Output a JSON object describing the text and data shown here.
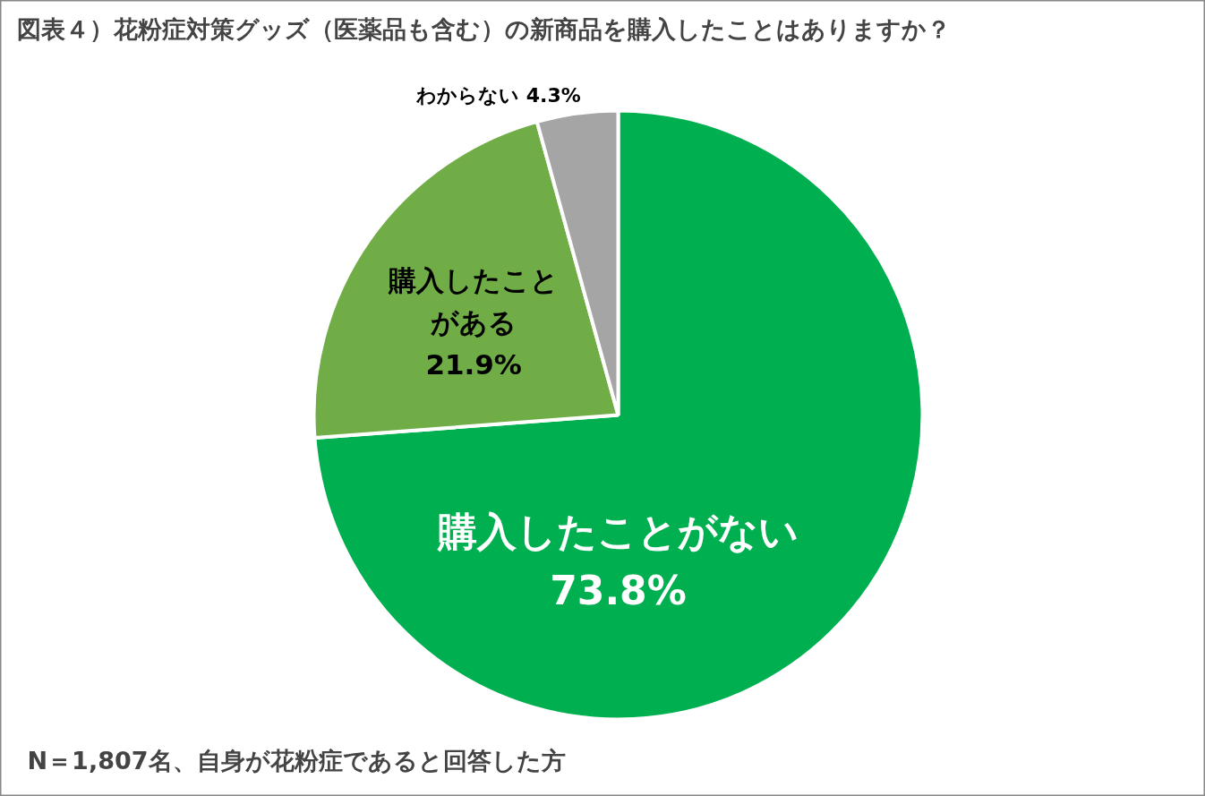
{
  "chart_data": {
    "type": "pie",
    "title": "図表４）花粉症対策グッズ（医薬品も含む）の新商品を購入したことはありますか？",
    "categories": [
      "購入したことがない",
      "購入したことがある",
      "わからない"
    ],
    "values": [
      73.8,
      21.9,
      4.3
    ],
    "value_labels": [
      "73.8%",
      "21.9%",
      "4.3%"
    ],
    "colors": [
      "#00b050",
      "#70ad47",
      "#a5a5a5"
    ],
    "annotations": [
      "N＝1,807名、自身が花粉症であると回答した方"
    ]
  }
}
